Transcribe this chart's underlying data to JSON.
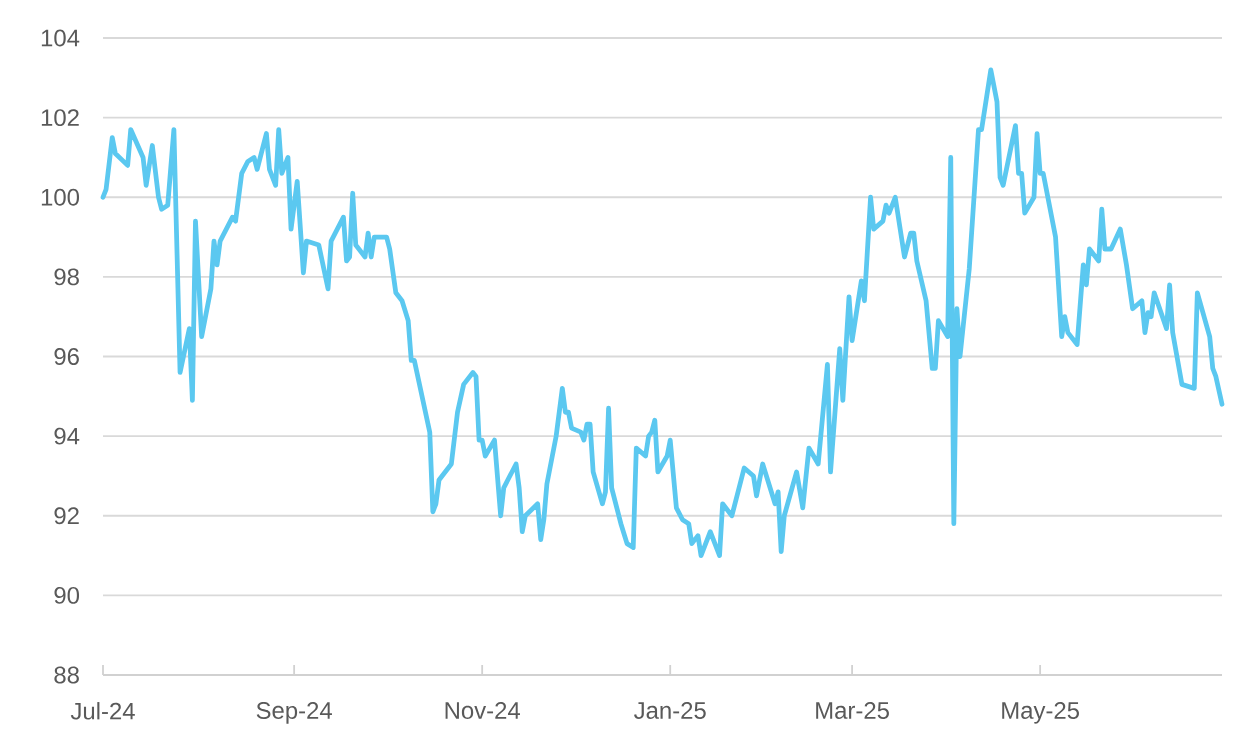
{
  "chart_data": {
    "type": "line",
    "x": [
      "2024-07-01",
      "2024-07-02",
      "2024-07-04",
      "2024-07-05",
      "2024-07-09",
      "2024-07-10",
      "2024-07-14",
      "2024-07-15",
      "2024-07-17",
      "2024-07-19",
      "2024-07-20",
      "2024-07-22",
      "2024-07-24",
      "2024-07-26",
      "2024-07-29",
      "2024-07-30",
      "2024-07-31",
      "2024-08-02",
      "2024-08-05",
      "2024-08-06",
      "2024-08-07",
      "2024-08-08",
      "2024-08-12",
      "2024-08-13",
      "2024-08-15",
      "2024-08-17",
      "2024-08-19",
      "2024-08-20",
      "2024-08-23",
      "2024-08-24",
      "2024-08-26",
      "2024-08-27",
      "2024-08-28",
      "2024-08-30",
      "2024-08-31",
      "2024-09-02",
      "2024-09-04",
      "2024-09-05",
      "2024-09-09",
      "2024-09-12",
      "2024-09-13",
      "2024-09-17",
      "2024-09-18",
      "2024-09-19",
      "2024-09-20",
      "2024-09-21",
      "2024-09-24",
      "2024-09-25",
      "2024-09-26",
      "2024-09-27",
      "2024-10-01",
      "2024-10-02",
      "2024-10-04",
      "2024-10-06",
      "2024-10-08",
      "2024-10-09",
      "2024-10-10",
      "2024-10-15",
      "2024-10-16",
      "2024-10-17",
      "2024-10-18",
      "2024-10-22",
      "2024-10-24",
      "2024-10-26",
      "2024-10-29",
      "2024-10-30",
      "2024-10-31",
      "2024-11-01",
      "2024-11-02",
      "2024-11-05",
      "2024-11-07",
      "2024-11-08",
      "2024-11-12",
      "2024-11-13",
      "2024-11-14",
      "2024-11-15",
      "2024-11-19",
      "2024-11-20",
      "2024-11-21",
      "2024-11-22",
      "2024-11-25",
      "2024-11-27",
      "2024-11-28",
      "2024-11-29",
      "2024-11-30",
      "2024-12-03",
      "2024-12-04",
      "2024-12-05",
      "2024-12-06",
      "2024-12-07",
      "2024-12-10",
      "2024-12-11",
      "2024-12-12",
      "2024-12-13",
      "2024-12-16",
      "2024-12-18",
      "2024-12-20",
      "2024-12-21",
      "2024-12-24",
      "2024-12-25",
      "2024-12-26",
      "2024-12-27",
      "2024-12-28",
      "2024-12-31",
      "2025-01-01",
      "2025-01-03",
      "2025-01-05",
      "2025-01-07",
      "2025-01-08",
      "2025-01-10",
      "2025-01-11",
      "2025-01-14",
      "2025-01-17",
      "2025-01-18",
      "2025-01-21",
      "2025-01-25",
      "2025-01-28",
      "2025-01-29",
      "2025-01-31",
      "2025-02-04",
      "2025-02-05",
      "2025-02-06",
      "2025-02-07",
      "2025-02-11",
      "2025-02-13",
      "2025-02-15",
      "2025-02-18",
      "2025-02-21",
      "2025-02-22",
      "2025-02-25",
      "2025-02-26",
      "2025-02-28",
      "2025-03-01",
      "2025-03-04",
      "2025-03-05",
      "2025-03-07",
      "2025-03-08",
      "2025-03-11",
      "2025-03-12",
      "2025-03-13",
      "2025-03-15",
      "2025-03-18",
      "2025-03-20",
      "2025-03-21",
      "2025-03-22",
      "2025-03-25",
      "2025-03-27",
      "2025-03-28",
      "2025-03-29",
      "2025-04-01",
      "2025-04-02",
      "2025-04-03",
      "2025-04-04",
      "2025-04-05",
      "2025-04-08",
      "2025-04-11",
      "2025-04-12",
      "2025-04-15",
      "2025-04-17",
      "2025-04-18",
      "2025-04-19",
      "2025-04-23",
      "2025-04-24",
      "2025-04-25",
      "2025-04-26",
      "2025-04-29",
      "2025-04-30",
      "2025-05-01",
      "2025-05-02",
      "2025-05-06",
      "2025-05-08",
      "2025-05-09",
      "2025-05-10",
      "2025-05-13",
      "2025-05-15",
      "2025-05-16",
      "2025-05-17",
      "2025-05-20",
      "2025-05-21",
      "2025-05-22",
      "2025-05-24",
      "2025-05-27",
      "2025-05-29",
      "2025-05-31",
      "2025-06-03",
      "2025-06-04",
      "2025-06-05",
      "2025-06-06",
      "2025-06-07",
      "2025-06-11",
      "2025-06-12",
      "2025-06-13",
      "2025-06-16",
      "2025-06-20",
      "2025-06-21",
      "2025-06-25",
      "2025-06-26",
      "2025-06-27",
      "2025-06-29"
    ],
    "series": [
      {
        "color": "#5bc8f0",
        "values": [
          100.0,
          100.2,
          101.5,
          101.1,
          100.8,
          101.7,
          101.0,
          100.3,
          101.3,
          100.0,
          99.7,
          99.8,
          101.7,
          95.6,
          96.7,
          94.9,
          99.4,
          96.5,
          97.7,
          98.9,
          98.3,
          98.9,
          99.5,
          99.4,
          100.6,
          100.9,
          101.0,
          100.7,
          101.6,
          100.7,
          100.3,
          101.7,
          100.6,
          101.0,
          99.2,
          100.4,
          98.1,
          98.9,
          98.8,
          97.7,
          98.9,
          99.5,
          98.4,
          98.5,
          100.1,
          98.8,
          98.5,
          99.1,
          98.5,
          99.0,
          99.0,
          98.7,
          97.6,
          97.4,
          96.9,
          95.9,
          95.9,
          94.1,
          92.1,
          92.3,
          92.9,
          93.3,
          94.6,
          95.3,
          95.6,
          95.5,
          93.9,
          93.9,
          93.5,
          93.9,
          92.0,
          92.7,
          93.3,
          92.7,
          91.6,
          92.0,
          92.3,
          91.4,
          91.9,
          92.8,
          94.0,
          95.2,
          94.6,
          94.6,
          94.2,
          94.1,
          93.9,
          94.3,
          94.3,
          93.1,
          92.3,
          92.6,
          94.7,
          92.7,
          91.8,
          91.3,
          91.2,
          93.7,
          93.5,
          94.0,
          94.1,
          94.4,
          93.1,
          93.5,
          93.9,
          92.2,
          91.9,
          91.8,
          91.3,
          91.5,
          91.0,
          91.6,
          91.0,
          92.3,
          92.0,
          93.2,
          93.0,
          92.5,
          93.3,
          92.3,
          92.6,
          91.1,
          92.0,
          93.1,
          92.2,
          93.7,
          93.3,
          95.8,
          93.1,
          96.2,
          94.9,
          97.5,
          96.4,
          97.9,
          97.4,
          100.0,
          99.2,
          99.4,
          99.8,
          99.6,
          100.0,
          98.5,
          99.1,
          99.1,
          98.4,
          97.4,
          95.7,
          95.7,
          96.9,
          96.5,
          101.0,
          91.8,
          97.2,
          96.0,
          98.2,
          101.7,
          101.7,
          103.2,
          102.4,
          100.5,
          100.3,
          101.8,
          100.6,
          100.6,
          99.6,
          100.0,
          101.6,
          100.6,
          100.6,
          99.0,
          96.5,
          97.0,
          96.6,
          96.3,
          98.3,
          97.8,
          98.7,
          98.4,
          99.7,
          98.7,
          98.7,
          99.2,
          98.3,
          97.2,
          97.4,
          96.6,
          97.1,
          97.0,
          97.6,
          96.7,
          97.8,
          96.6,
          95.3,
          95.2,
          97.6,
          96.5,
          95.7,
          95.5,
          94.8
        ]
      }
    ],
    "xlim": [
      "2024-07-01",
      "2025-06-29"
    ],
    "xticks": [
      {
        "value": "2024-07-01",
        "label": "Jul-24"
      },
      {
        "value": "2024-09-01",
        "label": "Sep-24"
      },
      {
        "value": "2024-11-01",
        "label": "Nov-24"
      },
      {
        "value": "2025-01-01",
        "label": "Jan-25"
      },
      {
        "value": "2025-03-01",
        "label": "Mar-25"
      },
      {
        "value": "2025-05-01",
        "label": "May-25"
      }
    ],
    "ylim": [
      88,
      104
    ],
    "yticks": [
      88,
      90,
      92,
      94,
      96,
      98,
      100,
      102,
      104
    ],
    "grid": "y",
    "marker": "none",
    "line_style": "solid"
  }
}
